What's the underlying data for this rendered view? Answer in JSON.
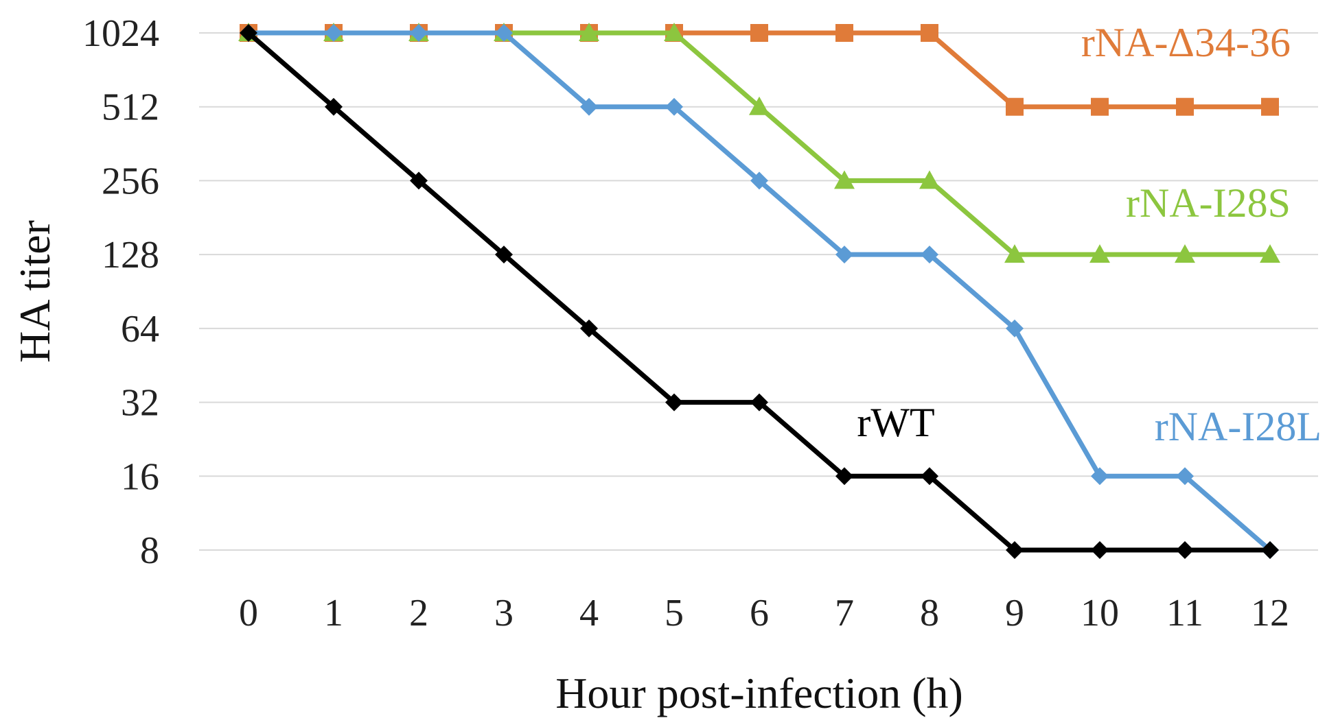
{
  "chart_data": {
    "type": "line",
    "title": "",
    "xlabel": "Hour post-infection (h)",
    "ylabel": "HA titer",
    "x": [
      0,
      1,
      2,
      3,
      4,
      5,
      6,
      7,
      8,
      9,
      10,
      11,
      12
    ],
    "x_tick_labels": [
      "0",
      "1",
      "2",
      "3",
      "4",
      "5",
      "6",
      "7",
      "8",
      "9",
      "10",
      "11",
      "12"
    ],
    "y_scale": "log2",
    "y_ticks": [
      8,
      16,
      32,
      64,
      128,
      256,
      512,
      1024
    ],
    "y_tick_labels": [
      "8",
      "16",
      "32",
      "64",
      "128",
      "256",
      "512",
      "1024"
    ],
    "ylim": [
      8,
      1024
    ],
    "grid": true,
    "series": [
      {
        "name": "rNA-Δ34-36",
        "label": "rNA-Δ34-36",
        "color": "#E07B39",
        "marker": "square",
        "values": [
          1024,
          1024,
          1024,
          1024,
          1024,
          1024,
          1024,
          1024,
          1024,
          512,
          512,
          512,
          512
        ]
      },
      {
        "name": "rNA-I28S",
        "label": "rNA-I28S",
        "color": "#8CC63F",
        "marker": "triangle",
        "values": [
          1024,
          1024,
          1024,
          1024,
          1024,
          1024,
          512,
          256,
          256,
          128,
          128,
          128,
          128
        ]
      },
      {
        "name": "rNA-I28L",
        "label": "rNA-I28L",
        "color": "#5B9BD5",
        "marker": "diamond",
        "values": [
          1024,
          1024,
          1024,
          1024,
          512,
          512,
          256,
          128,
          128,
          64,
          16,
          16,
          8
        ]
      },
      {
        "name": "rWT",
        "label": "rWT",
        "color": "#000000",
        "marker": "diamond",
        "values": [
          1024,
          512,
          256,
          128,
          64,
          32,
          32,
          16,
          16,
          8,
          8,
          8,
          8
        ]
      }
    ]
  }
}
